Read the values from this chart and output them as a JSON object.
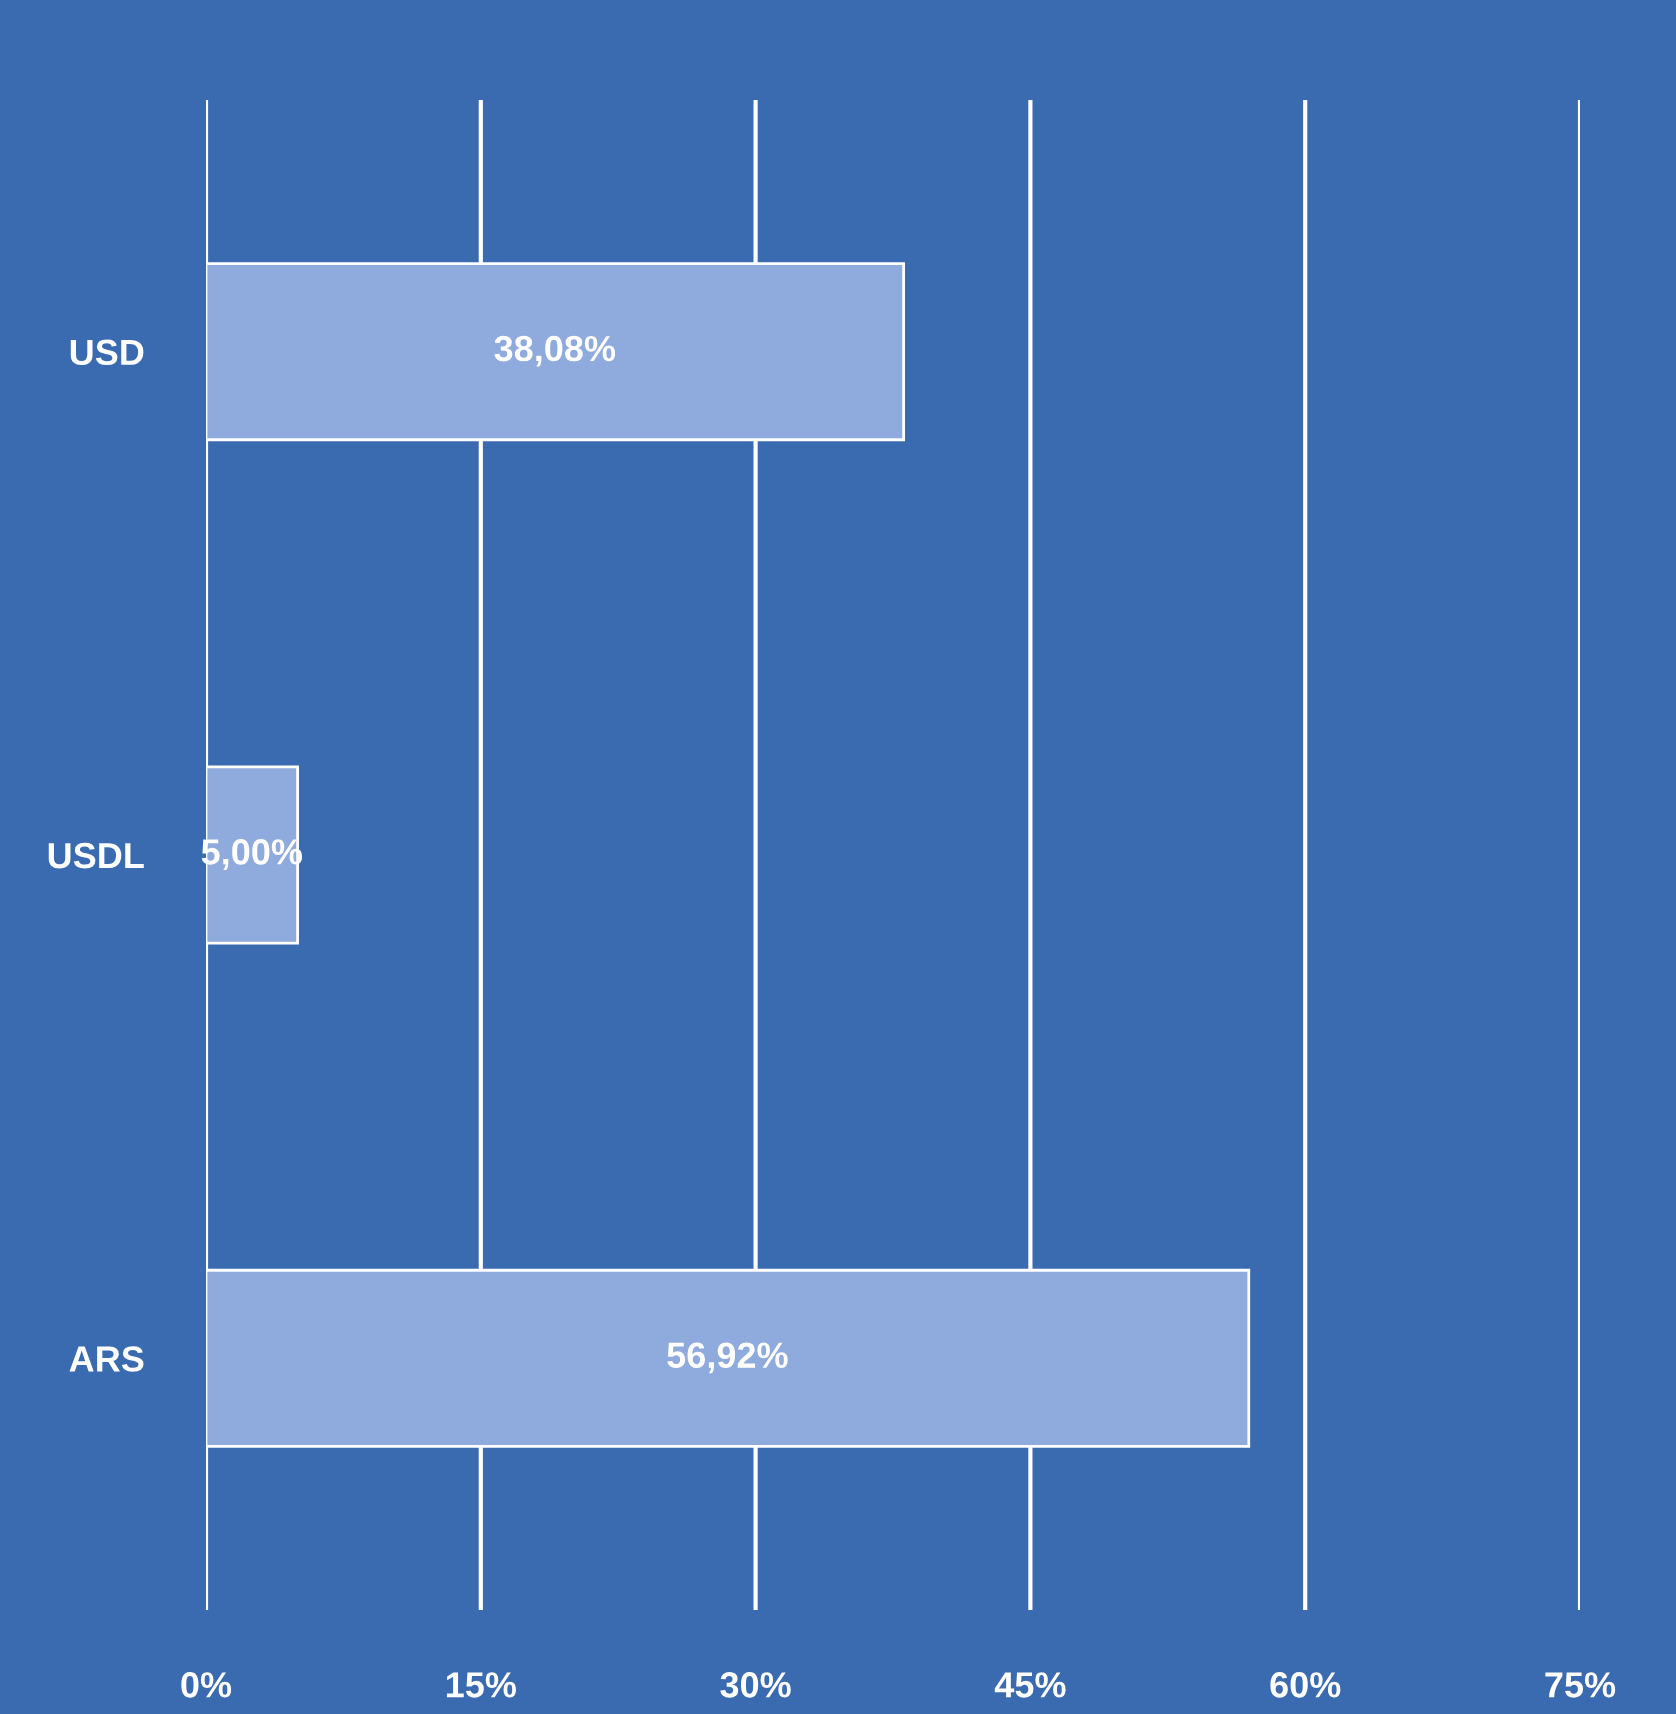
{
  "chart_data": {
    "type": "bar",
    "orientation": "horizontal",
    "categories": [
      "USD",
      "USDL",
      "ARS"
    ],
    "values": [
      38.08,
      5.0,
      56.92
    ],
    "value_labels": [
      "38,08%",
      "5,00%",
      "56,92%"
    ],
    "color": "#8faadc",
    "xlim": [
      0,
      75
    ],
    "xticks": [
      {
        "value": 0,
        "label": "0%"
      },
      {
        "value": 15,
        "label": "15%"
      },
      {
        "value": 30,
        "label": "30%"
      },
      {
        "value": 45,
        "label": "45%"
      },
      {
        "value": 60,
        "label": "60%"
      },
      {
        "value": 75,
        "label": "75%"
      }
    ],
    "grid": "x",
    "legend": false
  }
}
